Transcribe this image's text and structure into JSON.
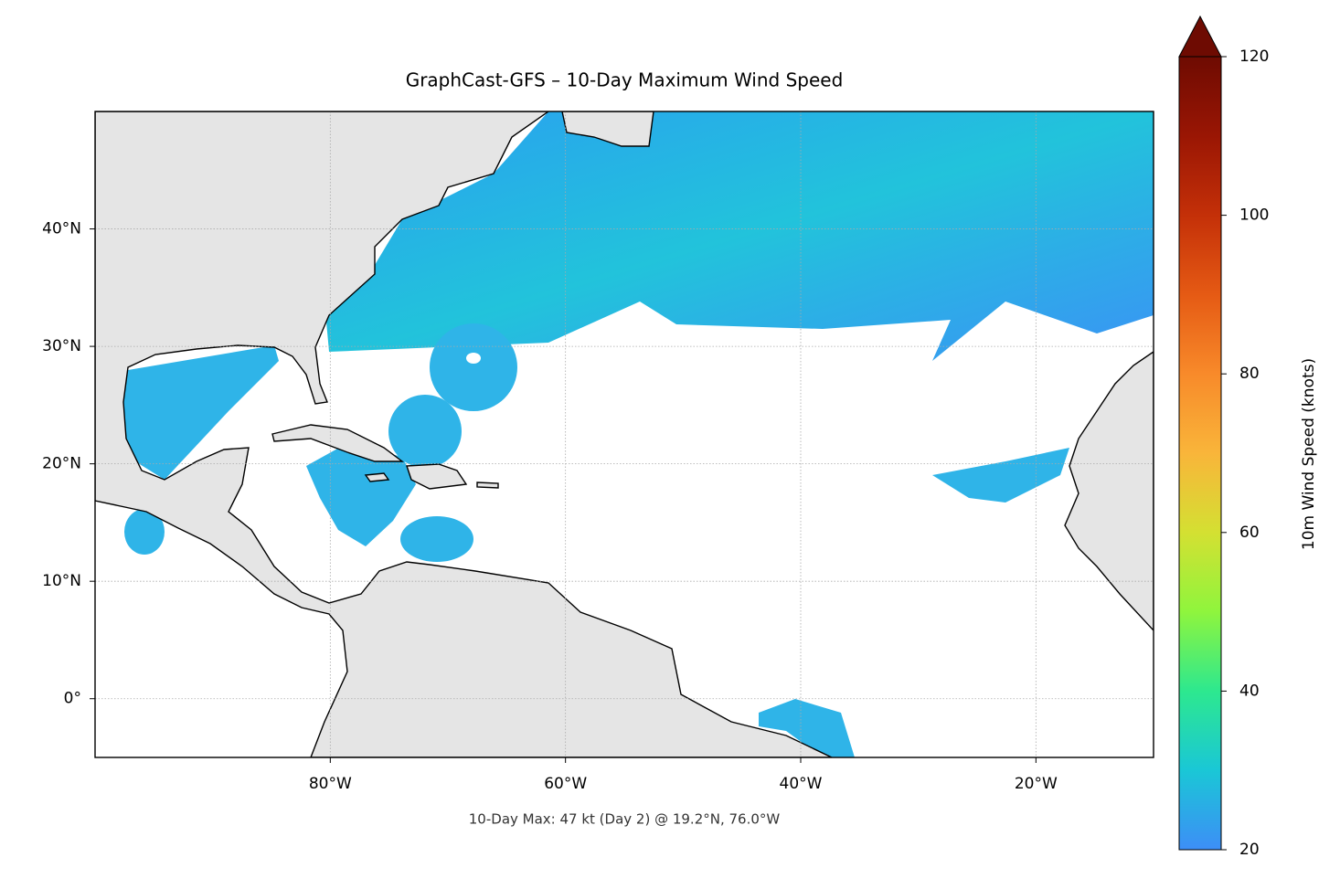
{
  "chart_data": {
    "type": "map",
    "title": "GraphCast-GFS – 10-Day Maximum Wind Speed",
    "annotation": "10-Day Max: 47 kt (Day 2) @ 19.2°N, 76.0°W",
    "xlim": [
      -100,
      -10
    ],
    "ylim": [
      -5,
      50
    ],
    "xticks": [
      {
        "value": -80,
        "label": "80°W"
      },
      {
        "value": -60,
        "label": "60°W"
      },
      {
        "value": -40,
        "label": "40°W"
      },
      {
        "value": -20,
        "label": "20°W"
      }
    ],
    "yticks": [
      {
        "value": 0,
        "label": "0°"
      },
      {
        "value": 10,
        "label": "10°N"
      },
      {
        "value": 20,
        "label": "20°N"
      },
      {
        "value": 30,
        "label": "30°N"
      },
      {
        "value": 40,
        "label": "40°N"
      }
    ],
    "grid": true,
    "colorbar": {
      "label": "10m Wind Speed (knots)",
      "lim": [
        20,
        120
      ],
      "ticks": [
        20,
        40,
        60,
        80,
        100,
        120
      ],
      "extend": "max",
      "colors": [
        "#3d8ef7",
        "#1ac7d6",
        "#2de88f",
        "#8ff53d",
        "#d4e032",
        "#f9b53a",
        "#f88a2a",
        "#e55a14",
        "#c43008",
        "#9a1604",
        "#6e0b02"
      ]
    }
  }
}
